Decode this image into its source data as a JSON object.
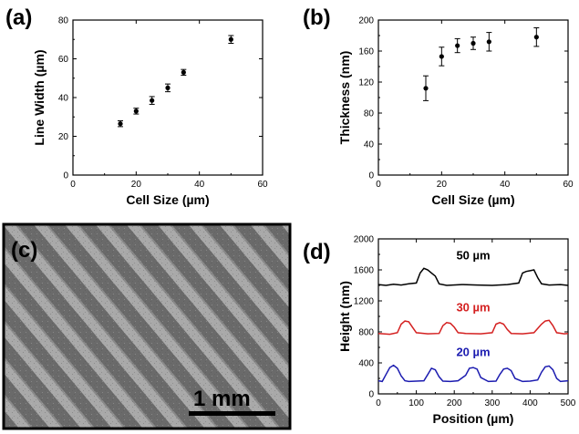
{
  "panels": {
    "a": {
      "label": "(a)"
    },
    "b": {
      "label": "(b)"
    },
    "c": {
      "label": "(c)",
      "scale_bar": "1 mm"
    },
    "d": {
      "label": "(d)"
    }
  },
  "colors": {
    "black": "#000000",
    "red": "#d42020",
    "blue": "#1c1cb0"
  },
  "chart_data": [
    {
      "id": "a",
      "type": "scatter",
      "xlabel": "Cell Size (µm)",
      "ylabel": "Line Width (µm)",
      "xlim": [
        0,
        60
      ],
      "ylim": [
        0,
        80
      ],
      "xticks": [
        "0",
        "20",
        "40",
        "60"
      ],
      "yticks": [
        "0",
        "20",
        "40",
        "60",
        "80"
      ],
      "points": [
        {
          "x": 15,
          "y": 26.5,
          "err": 1.5
        },
        {
          "x": 20,
          "y": 33,
          "err": 1.5
        },
        {
          "x": 25,
          "y": 38.5,
          "err": 2
        },
        {
          "x": 30,
          "y": 45,
          "err": 2
        },
        {
          "x": 35,
          "y": 53,
          "err": 1.5
        },
        {
          "x": 50,
          "y": 70,
          "err": 2
        }
      ]
    },
    {
      "id": "b",
      "type": "scatter",
      "xlabel": "Cell Size (µm)",
      "ylabel": "Thickness (nm)",
      "xlim": [
        0,
        60
      ],
      "ylim": [
        0,
        200
      ],
      "xticks": [
        "0",
        "20",
        "40",
        "60"
      ],
      "yticks": [
        "0",
        "40",
        "80",
        "120",
        "160",
        "200"
      ],
      "points": [
        {
          "x": 15,
          "y": 112,
          "err": 16
        },
        {
          "x": 20,
          "y": 153,
          "err": 12
        },
        {
          "x": 25,
          "y": 167,
          "err": 9
        },
        {
          "x": 30,
          "y": 170,
          "err": 8
        },
        {
          "x": 35,
          "y": 172,
          "err": 12
        },
        {
          "x": 50,
          "y": 178,
          "err": 12
        }
      ]
    },
    {
      "id": "d",
      "type": "line",
      "xlabel": "Position (µm)",
      "ylabel": "Height (nm)",
      "xlim": [
        0,
        500
      ],
      "ylim": [
        0,
        2000
      ],
      "xticks": [
        "0",
        "100",
        "200",
        "300",
        "400",
        "500"
      ],
      "yticks": [
        "0",
        "400",
        "800",
        "1200",
        "1600",
        "2000"
      ],
      "series": [
        {
          "name": "50 µm",
          "color": "#000000",
          "x": [
            0,
            20,
            40,
            60,
            80,
            100,
            110,
            120,
            130,
            140,
            150,
            160,
            180,
            220,
            260,
            300,
            340,
            370,
            380,
            390,
            400,
            410,
            420,
            430,
            450,
            480,
            500
          ],
          "y": [
            1410,
            1400,
            1415,
            1405,
            1420,
            1430,
            1560,
            1620,
            1600,
            1560,
            1520,
            1420,
            1400,
            1410,
            1405,
            1400,
            1410,
            1430,
            1560,
            1580,
            1590,
            1600,
            1500,
            1420,
            1405,
            1410,
            1400
          ]
        },
        {
          "name": "30 µm",
          "color": "#d42020",
          "x": [
            0,
            30,
            50,
            60,
            70,
            80,
            90,
            100,
            130,
            160,
            170,
            180,
            190,
            200,
            210,
            230,
            270,
            300,
            310,
            320,
            330,
            340,
            350,
            380,
            410,
            430,
            440,
            450,
            460,
            470,
            490,
            500
          ],
          "y": [
            780,
            770,
            790,
            900,
            940,
            930,
            860,
            790,
            775,
            780,
            880,
            920,
            910,
            860,
            790,
            780,
            775,
            790,
            900,
            920,
            900,
            830,
            780,
            775,
            790,
            900,
            940,
            950,
            880,
            790,
            775,
            780
          ]
        },
        {
          "name": "20 µm",
          "color": "#1c1cb0",
          "x": [
            0,
            10,
            20,
            30,
            40,
            50,
            60,
            70,
            80,
            100,
            120,
            130,
            140,
            150,
            160,
            170,
            190,
            210,
            230,
            240,
            250,
            260,
            270,
            290,
            310,
            320,
            330,
            340,
            350,
            360,
            380,
            400,
            420,
            430,
            440,
            450,
            460,
            470,
            480,
            500
          ],
          "y": [
            170,
            160,
            250,
            340,
            370,
            330,
            230,
            170,
            160,
            165,
            170,
            250,
            330,
            310,
            220,
            165,
            160,
            170,
            240,
            330,
            340,
            320,
            210,
            160,
            165,
            250,
            320,
            330,
            300,
            200,
            160,
            165,
            180,
            280,
            350,
            360,
            310,
            200,
            160,
            170
          ]
        }
      ]
    }
  ]
}
